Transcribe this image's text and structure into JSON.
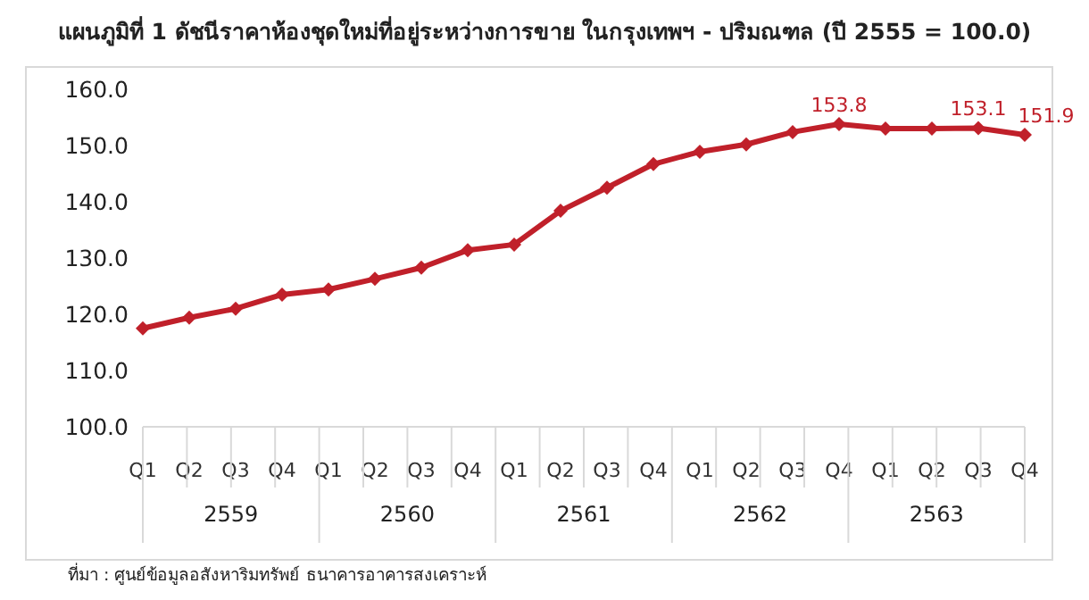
{
  "chart_data": {
    "type": "line",
    "title": "แผนภูมิที่ 1 ดัชนีราคาห้องชุดใหม่ที่อยู่ระหว่างการขาย ในกรุงเทพฯ - ปริมณฑล (ปี 2555 = 100.0)",
    "categories": [
      "Q1",
      "Q2",
      "Q3",
      "Q4",
      "Q1",
      "Q2",
      "Q3",
      "Q4",
      "Q1",
      "Q2",
      "Q3",
      "Q4",
      "Q1",
      "Q2",
      "Q3",
      "Q4",
      "Q1",
      "Q2",
      "Q3",
      "Q4"
    ],
    "series": [
      {
        "color": "#c0202a",
        "values": [
          117.5,
          119.4,
          121.0,
          123.5,
          124.4,
          126.3,
          128.3,
          131.4,
          132.4,
          138.4,
          142.5,
          146.7,
          148.9,
          150.2,
          152.4,
          153.8,
          153.0,
          153.0,
          153.1,
          151.9
        ],
        "value_labels": [
          null,
          null,
          null,
          null,
          null,
          null,
          null,
          null,
          null,
          null,
          null,
          null,
          null,
          null,
          null,
          "153.8",
          null,
          null,
          "153.1",
          "151.9"
        ]
      }
    ],
    "ylim": [
      100,
      160
    ],
    "yticks": [
      {
        "value": 100,
        "label": "100.0"
      },
      {
        "value": 110,
        "label": "110.0"
      },
      {
        "value": 120,
        "label": "120.0"
      },
      {
        "value": 130,
        "label": "130.0"
      },
      {
        "value": 140,
        "label": "140.0"
      },
      {
        "value": 150,
        "label": "150.0"
      },
      {
        "value": 160,
        "label": "160.0"
      }
    ],
    "grid": false,
    "legend": false,
    "marker": "diamond",
    "line_style": "solid",
    "annotations": [
      "2559",
      "2560",
      "2561",
      "2562",
      "2563",
      "ที่มา : ศูนย์ข้อมูลอสังหาริมทรัพย์ ธนาคารอาคารสงเคราะห์"
    ]
  }
}
